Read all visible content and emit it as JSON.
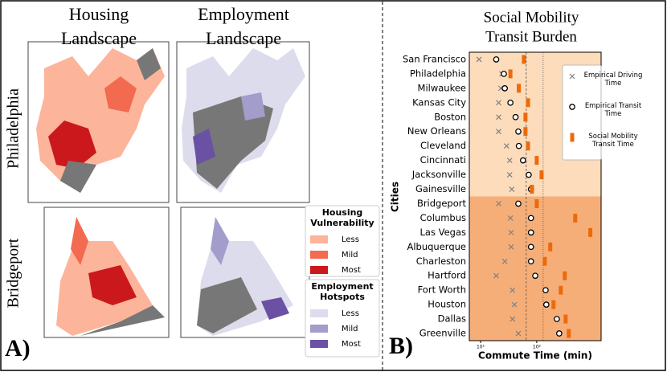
{
  "panel_a": {
    "label": "A)",
    "columns": [
      [
        "Housing",
        "Landscape"
      ],
      [
        "Employment",
        "Landscape"
      ]
    ],
    "rows": [
      "Philadelphia",
      "Bridgeport"
    ],
    "legends": [
      {
        "title": [
          "Housing",
          "Vulnerability"
        ],
        "items": [
          {
            "label": "Less",
            "color": "#fcb49a"
          },
          {
            "label": "Mild",
            "color": "#f26a4f"
          },
          {
            "label": "Most",
            "color": "#cb181d"
          }
        ]
      },
      {
        "title": [
          "Employment",
          "Hotspots"
        ],
        "items": [
          {
            "label": "Less",
            "color": "#dcdcec"
          },
          {
            "label": "Mild",
            "color": "#a39dcc"
          },
          {
            "label": "Most",
            "color": "#6a51a3"
          }
        ]
      }
    ]
  },
  "chart_data": {
    "type": "dot",
    "panel_label": "B)",
    "title": [
      "Social Mobility",
      "Transit Burden"
    ],
    "xlabel": "Commute Time (min)",
    "ylabel": "Cities",
    "xscale": "log",
    "xlim": [
      6.3,
      1400
    ],
    "xticks": [
      {
        "value": 10,
        "label": "10¹"
      },
      {
        "value": 100,
        "label": "10²"
      }
    ],
    "vlines": [
      {
        "value": 65,
        "style": "dashed"
      },
      {
        "value": 130,
        "style": "dotted"
      }
    ],
    "categories": [
      "San Francisco",
      "Philadelphia",
      "Milwaukee",
      "Kansas City",
      "Boston",
      "New Orleans",
      "Cleveland",
      "Cincinnati",
      "Jacksonville",
      "Gainesville",
      "Bridgeport",
      "Columbus",
      "Las Vegas",
      "Albuquerque",
      "Charleston",
      "Hartford",
      "Fort Worth",
      "Houston",
      "Dallas",
      "Greenville"
    ],
    "band_colors": [
      "#fddcbb",
      "#fddcbb",
      "#fddcbb",
      "#fddcbb",
      "#fddcbb",
      "#fddcbb",
      "#fddcbb",
      "#fddcbb",
      "#fddcbb",
      "#fddcbb",
      "#f6ae78",
      "#f6ae78",
      "#f6ae78",
      "#f6ae78",
      "#f6ae78",
      "#f6ae78",
      "#f6ae78",
      "#f6ae78",
      "#f6ae78",
      "#f6ae78"
    ],
    "legend": "upper right",
    "series": [
      {
        "name": "Empirical Driving Time",
        "marker": "x",
        "color": "#808080",
        "values": [
          9.4,
          24,
          23,
          21,
          21,
          21,
          29,
          33,
          33,
          36,
          21,
          34,
          35,
          35,
          27,
          19,
          37,
          40,
          37,
          47
        ]
      },
      {
        "name": "Empirical Transit Time",
        "marker": "o",
        "color": "#000000",
        "values": [
          19,
          26,
          27,
          34,
          42,
          47,
          48,
          57,
          72,
          79,
          47,
          79,
          79,
          79,
          79,
          94,
          144,
          148,
          228,
          251
        ]
      },
      {
        "name": "Social Mobility Transit Time",
        "marker": "rect",
        "color": "#ec6a0c",
        "values": [
          59,
          34,
          48,
          70,
          63,
          63,
          70,
          100,
          122,
          82,
          100,
          484,
          900,
          174,
          139,
          316,
          268,
          199,
          327,
          372
        ]
      }
    ]
  }
}
